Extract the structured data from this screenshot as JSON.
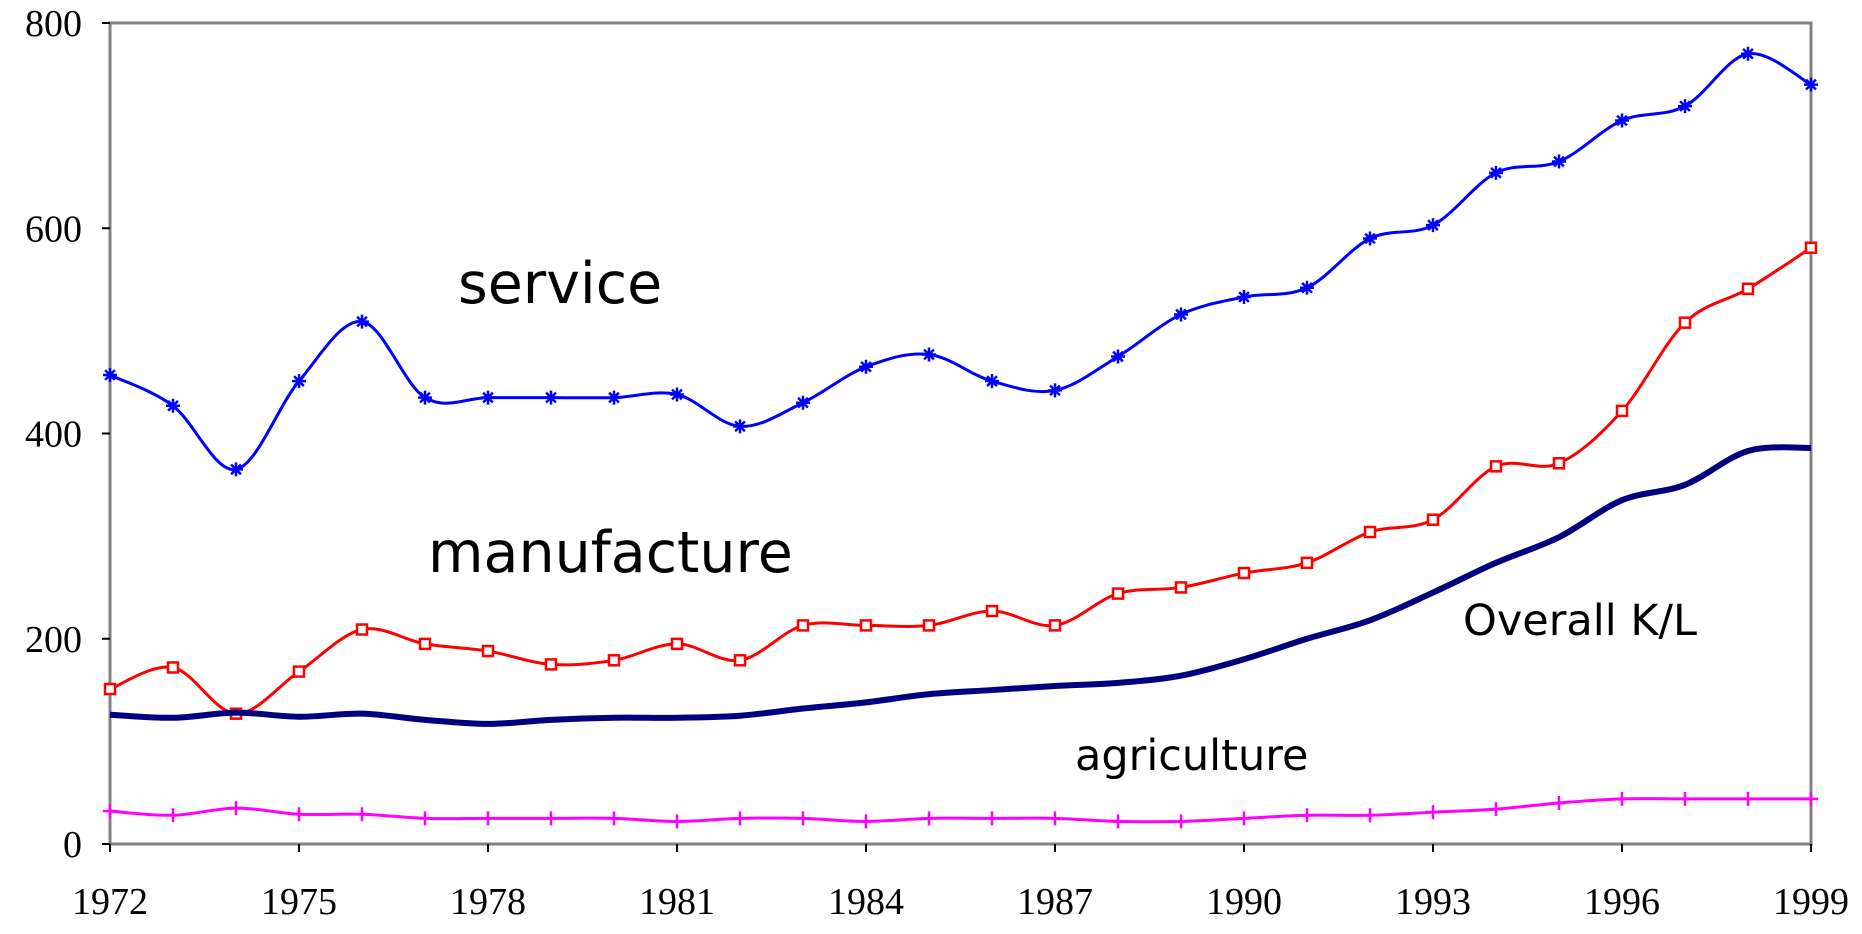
{
  "chart_data": {
    "type": "line",
    "x": [
      1972,
      1973,
      1974,
      1975,
      1976,
      1977,
      1978,
      1979,
      1980,
      1981,
      1982,
      1983,
      1984,
      1985,
      1986,
      1987,
      1988,
      1989,
      1990,
      1991,
      1992,
      1993,
      1994,
      1995,
      1996,
      1997,
      1998,
      1999
    ],
    "series": [
      {
        "name": "service",
        "color": "#0000ff",
        "marker": "star",
        "values": [
          457,
          427,
          365,
          451,
          509,
          435,
          435,
          435,
          435,
          438,
          407,
          430,
          465,
          477,
          451,
          442,
          475,
          516,
          533,
          542,
          590,
          603,
          654,
          665,
          705,
          719,
          770,
          740
        ]
      },
      {
        "name": "manufacture",
        "color": "#ff0000",
        "marker": "square",
        "values": [
          151,
          172,
          127,
          168,
          209,
          195,
          188,
          175,
          179,
          195,
          179,
          213,
          213,
          213,
          227,
          213,
          244,
          250,
          264,
          274,
          304,
          316,
          368,
          371,
          422,
          508,
          541,
          581
        ]
      },
      {
        "name": "Overall K/L",
        "color": "#000080",
        "marker": "none",
        "values": [
          126,
          123,
          128,
          124,
          127,
          121,
          117,
          121,
          123,
          123,
          125,
          132,
          138,
          146,
          150,
          154,
          157,
          164,
          180,
          200,
          218,
          245,
          274,
          299,
          335,
          350,
          383,
          386
        ]
      },
      {
        "name": "agriculture",
        "color": "#ff00ff",
        "marker": "plus",
        "values": [
          32,
          28,
          35,
          29,
          29,
          25,
          25,
          25,
          25,
          22,
          25,
          25,
          22,
          25,
          25,
          25,
          22,
          22,
          25,
          28,
          28,
          31,
          34,
          40,
          44,
          44,
          44,
          44
        ]
      }
    ],
    "xlim": [
      1972,
      1999
    ],
    "xticks": [
      1972,
      1975,
      1978,
      1981,
      1984,
      1987,
      1990,
      1993,
      1996,
      1999
    ],
    "ylim": [
      0,
      800
    ],
    "yticks": [
      0,
      200,
      400,
      600,
      800
    ],
    "grid": false
  }
}
